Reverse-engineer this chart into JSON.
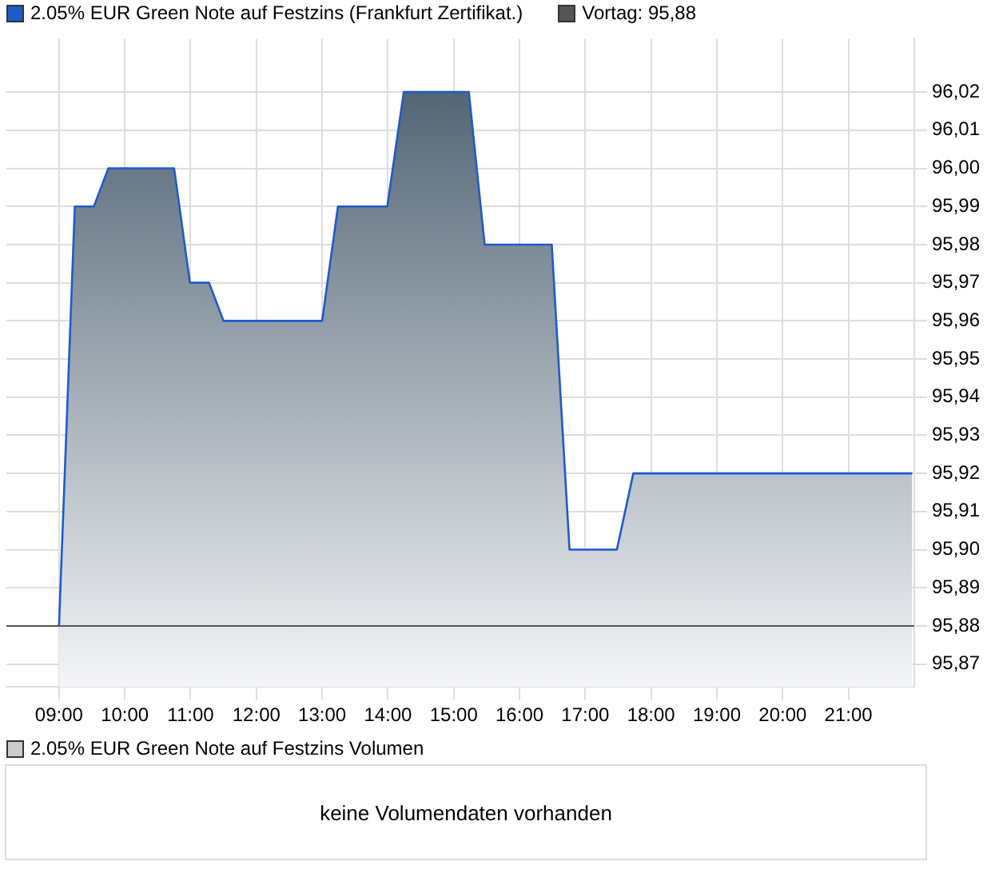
{
  "chart_data": {
    "type": "area",
    "legend": "top left",
    "grid": true,
    "marker": "none",
    "line_style": "solid",
    "x": [
      9,
      9.24,
      9.53,
      9.75,
      10.75,
      10.99,
      11.28,
      11.5,
      13.0,
      13.24,
      13.99,
      14.24,
      15.23,
      15.47,
      16.49,
      16.76,
      17.48,
      17.73,
      21.97
    ],
    "series": [
      {
        "name": "2.05% EUR Green Note auf Festzins (Frankfurt Zertifikat.)",
        "color": "#1f5bc8",
        "values": [
          95.88,
          95.99,
          95.99,
          96.0,
          96.0,
          95.97,
          95.97,
          95.96,
          95.96,
          95.99,
          95.99,
          96.02,
          96.02,
          95.98,
          95.98,
          95.9,
          95.9,
          95.92,
          95.92
        ]
      }
    ],
    "xlim": [
      8.2,
      22.0
    ],
    "xticks": [
      {
        "value": 9,
        "label": "09:00"
      },
      {
        "value": 10,
        "label": "10:00"
      },
      {
        "value": 11,
        "label": "11:00"
      },
      {
        "value": 12,
        "label": "12:00"
      },
      {
        "value": 13,
        "label": "13:00"
      },
      {
        "value": 14,
        "label": "14:00"
      },
      {
        "value": 15,
        "label": "15:00"
      },
      {
        "value": 16,
        "label": "16:00"
      },
      {
        "value": 17,
        "label": "17:00"
      },
      {
        "value": 18,
        "label": "18:00"
      },
      {
        "value": 19,
        "label": "19:00"
      },
      {
        "value": 20,
        "label": "20:00"
      },
      {
        "value": 21,
        "label": "21:00"
      }
    ],
    "ylim": [
      95.864,
      96.034
    ],
    "yticks": [
      {
        "value": 95.87,
        "label": "95,87"
      },
      {
        "value": 95.88,
        "label": "95,88"
      },
      {
        "value": 95.89,
        "label": "95,89"
      },
      {
        "value": 95.9,
        "label": "95,90"
      },
      {
        "value": 95.91,
        "label": "95,91"
      },
      {
        "value": 95.92,
        "label": "95,92"
      },
      {
        "value": 95.93,
        "label": "95,93"
      },
      {
        "value": 95.94,
        "label": "95,94"
      },
      {
        "value": 95.95,
        "label": "95,95"
      },
      {
        "value": 95.96,
        "label": "95,96"
      },
      {
        "value": 95.97,
        "label": "95,97"
      },
      {
        "value": 95.98,
        "label": "95,98"
      },
      {
        "value": 95.99,
        "label": "95,99"
      },
      {
        "value": 96.0,
        "label": "96,00"
      },
      {
        "value": 96.01,
        "label": "96,01"
      },
      {
        "value": 96.02,
        "label": "96,02"
      }
    ],
    "ref_lines": [
      {
        "axis": "y",
        "value": 95.88,
        "label": "Vortag: 95,88",
        "color": "#555555"
      }
    ],
    "annotations": [
      "2.05% EUR Green Note auf Festzins Volumen",
      "keine Volumendaten vorhanden"
    ]
  }
}
